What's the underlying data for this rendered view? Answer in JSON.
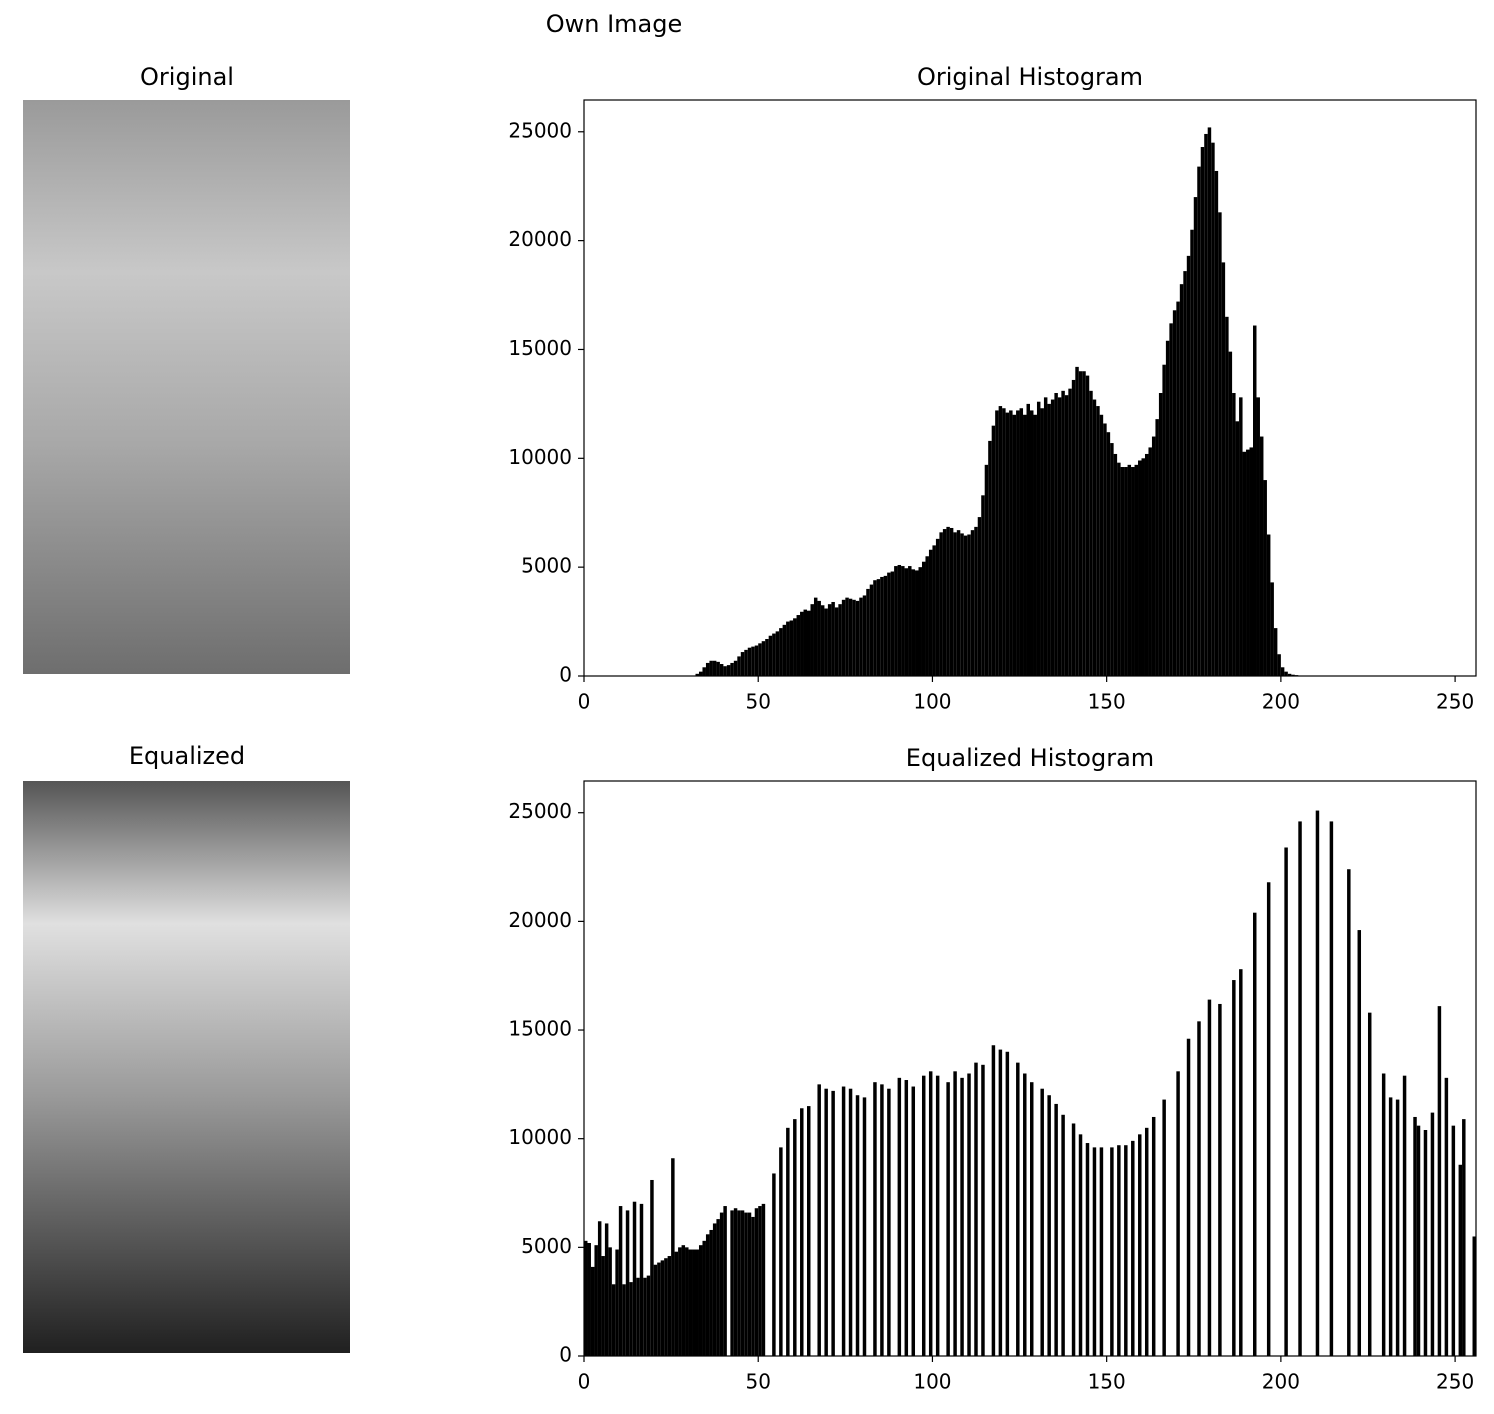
{
  "title": "Own Image",
  "images": [
    {
      "title": "Original"
    },
    {
      "title": "Equalized"
    }
  ],
  "chart_data": [
    {
      "type": "histogram",
      "title": "Original Histogram",
      "color": "#000000",
      "bins": [
        0,
        1,
        2,
        3,
        4,
        5,
        6,
        7,
        8,
        9,
        10,
        11,
        12,
        13,
        14,
        15,
        16,
        17,
        18,
        19,
        20,
        21,
        22,
        23,
        24,
        25,
        26,
        27,
        28,
        29,
        30,
        31,
        32,
        33,
        34,
        35,
        36,
        37,
        38,
        39,
        40,
        41,
        42,
        43,
        44,
        45,
        46,
        47,
        48,
        49,
        50,
        51,
        52,
        53,
        54,
        55,
        56,
        57,
        58,
        59,
        60,
        61,
        62,
        63,
        64,
        65,
        66,
        67,
        68,
        69,
        70,
        71,
        72,
        73,
        74,
        75,
        76,
        77,
        78,
        79,
        80,
        81,
        82,
        83,
        84,
        85,
        86,
        87,
        88,
        89,
        90,
        91,
        92,
        93,
        94,
        95,
        96,
        97,
        98,
        99,
        100,
        101,
        102,
        103,
        104,
        105,
        106,
        107,
        108,
        109,
        110,
        111,
        112,
        113,
        114,
        115,
        116,
        117,
        118,
        119,
        120,
        121,
        122,
        123,
        124,
        125,
        126,
        127,
        128,
        129,
        130,
        131,
        132,
        133,
        134,
        135,
        136,
        137,
        138,
        139,
        140,
        141,
        142,
        143,
        144,
        145,
        146,
        147,
        148,
        149,
        150,
        151,
        152,
        153,
        154,
        155,
        156,
        157,
        158,
        159,
        160,
        161,
        162,
        163,
        164,
        165,
        166,
        167,
        168,
        169,
        170,
        171,
        172,
        173,
        174,
        175,
        176,
        177,
        178,
        179,
        180,
        181,
        182,
        183,
        184,
        185,
        186,
        187,
        188,
        189,
        190,
        191,
        192,
        193,
        194,
        195,
        196,
        197,
        198,
        199,
        200,
        201,
        202,
        203,
        204,
        205,
        206,
        207,
        208,
        209,
        210,
        211,
        212,
        213,
        214,
        215,
        216,
        217,
        218,
        219,
        220,
        221,
        222,
        223,
        224,
        225,
        226,
        227,
        228,
        229,
        230,
        231,
        232,
        233,
        234,
        235,
        236,
        237,
        238,
        239,
        240,
        241,
        242,
        243,
        244,
        245,
        246,
        247,
        248,
        249,
        250,
        251,
        252,
        253,
        254,
        255,
        256
      ],
      "values": [
        0,
        0,
        0,
        0,
        0,
        0,
        0,
        0,
        0,
        0,
        0,
        0,
        0,
        0,
        0,
        0,
        0,
        0,
        0,
        0,
        0,
        0,
        0,
        0,
        0,
        0,
        0,
        0,
        0,
        0,
        0,
        0,
        100,
        200,
        400,
        600,
        700,
        700,
        650,
        550,
        450,
        500,
        600,
        700,
        900,
        1100,
        1200,
        1300,
        1350,
        1400,
        1500,
        1600,
        1700,
        1850,
        1950,
        2050,
        2200,
        2350,
        2500,
        2550,
        2650,
        2800,
        2950,
        3050,
        3000,
        3300,
        3600,
        3450,
        3250,
        3100,
        3300,
        3400,
        3150,
        3300,
        3500,
        3600,
        3550,
        3500,
        3450,
        3600,
        3700,
        4000,
        4200,
        4400,
        4450,
        4550,
        4600,
        4750,
        4800,
        5050,
        5100,
        5050,
        4950,
        5050,
        4900,
        4850,
        5000,
        5250,
        5500,
        5800,
        6000,
        6300,
        6600,
        6750,
        6850,
        6800,
        6600,
        6700,
        6550,
        6450,
        6500,
        6700,
        6850,
        7300,
        8300,
        9700,
        10800,
        11500,
        12200,
        12400,
        12300,
        12100,
        12200,
        12000,
        12200,
        12300,
        12000,
        12500,
        12200,
        12000,
        12600,
        12300,
        12800,
        12500,
        12700,
        13000,
        12800,
        13100,
        12900,
        13200,
        13600,
        14200,
        14000,
        14000,
        13800,
        13100,
        12700,
        12400,
        12000,
        11600,
        11200,
        10700,
        10200,
        9800,
        9600,
        9600,
        9700,
        9600,
        9700,
        9900,
        10000,
        10200,
        10500,
        11000,
        11800,
        13000,
        14300,
        15400,
        16200,
        16800,
        17200,
        18000,
        18600,
        19300,
        20500,
        22000,
        23400,
        24300,
        24900,
        25200,
        24500,
        23200,
        21300,
        19000,
        16500,
        14900,
        13000,
        11700,
        12800,
        10300,
        10400,
        10500,
        16100,
        12800,
        11000,
        9000,
        6500,
        4300,
        2200,
        1000,
        400,
        200,
        100,
        60,
        40,
        20,
        10,
        0,
        0,
        0,
        0,
        0,
        0,
        0,
        0,
        0,
        0,
        0,
        0,
        0,
        0,
        0,
        0,
        0,
        0,
        0,
        0,
        0,
        0,
        0,
        0,
        0,
        0,
        0,
        0,
        0,
        0,
        0,
        0,
        0,
        0,
        0,
        0,
        0,
        0,
        0,
        0,
        0,
        0,
        0,
        0,
        0,
        0,
        0,
        0,
        0
      ],
      "xlim": [
        0,
        256
      ],
      "ylim": [
        0,
        26460
      ],
      "xticks": [
        0,
        50,
        100,
        150,
        200,
        250
      ],
      "yticks": [
        0,
        5000,
        10000,
        15000,
        20000,
        25000
      ]
    },
    {
      "type": "histogram",
      "title": "Equalized Histogram",
      "color": "#000000",
      "bins": [
        0,
        1,
        2,
        3,
        4,
        5,
        6,
        7,
        8,
        9,
        10,
        11,
        12,
        13,
        14,
        15,
        16,
        17,
        18,
        19,
        20,
        21,
        22,
        23,
        24,
        25,
        26,
        27,
        28,
        29,
        30,
        31,
        32,
        33,
        34,
        35,
        36,
        37,
        38,
        39,
        40,
        41,
        42,
        43,
        44,
        45,
        46,
        47,
        48,
        49,
        50,
        51,
        52,
        53,
        54,
        55,
        56,
        57,
        58,
        59,
        60,
        61,
        62,
        63,
        64,
        65,
        66,
        67,
        68,
        69,
        70,
        71,
        72,
        73,
        74,
        75,
        76,
        77,
        78,
        79,
        80,
        81,
        82,
        83,
        84,
        85,
        86,
        87,
        88,
        89,
        90,
        91,
        92,
        93,
        94,
        95,
        96,
        97,
        98,
        99,
        100,
        101,
        102,
        103,
        104,
        105,
        106,
        107,
        108,
        109,
        110,
        111,
        112,
        113,
        114,
        115,
        116,
        117,
        118,
        119,
        120,
        121,
        122,
        123,
        124,
        125,
        126,
        127,
        128,
        129,
        130,
        131,
        132,
        133,
        134,
        135,
        136,
        137,
        138,
        139,
        140,
        141,
        142,
        143,
        144,
        145,
        146,
        147,
        148,
        149,
        150,
        151,
        152,
        153,
        154,
        155,
        156,
        157,
        158,
        159,
        160,
        161,
        162,
        163,
        164,
        165,
        166,
        167,
        168,
        169,
        170,
        171,
        172,
        173,
        174,
        175,
        176,
        177,
        178,
        179,
        180,
        181,
        182,
        183,
        184,
        185,
        186,
        187,
        188,
        189,
        190,
        191,
        192,
        193,
        194,
        195,
        196,
        197,
        198,
        199,
        200,
        201,
        202,
        203,
        204,
        205,
        206,
        207,
        208,
        209,
        210,
        211,
        212,
        213,
        214,
        215,
        216,
        217,
        218,
        219,
        220,
        221,
        222,
        223,
        224,
        225,
        226,
        227,
        228,
        229,
        230,
        231,
        232,
        233,
        234,
        235,
        236,
        237,
        238,
        239,
        240,
        241,
        242,
        243,
        244,
        245,
        246,
        247,
        248,
        249,
        250,
        251,
        252,
        253,
        254,
        255,
        256
      ],
      "values": [
        5300,
        5200,
        4100,
        5100,
        6200,
        4600,
        6100,
        5000,
        3300,
        4900,
        6900,
        3300,
        6700,
        3400,
        7100,
        3600,
        7000,
        3600,
        3700,
        8100,
        4200,
        4300,
        4400,
        4500,
        4600,
        9100,
        4800,
        5000,
        5100,
        5000,
        4900,
        4900,
        4900,
        5100,
        5300,
        5600,
        5800,
        6100,
        6300,
        6600,
        6900,
        0,
        6700,
        6800,
        6700,
        6700,
        6600,
        6600,
        6400,
        6800,
        6900,
        7000,
        0,
        0,
        8400,
        0,
        9600,
        0,
        10500,
        0,
        10900,
        0,
        11400,
        0,
        11500,
        0,
        0,
        12500,
        0,
        12300,
        0,
        12200,
        0,
        0,
        12400,
        0,
        12300,
        0,
        12000,
        0,
        11900,
        0,
        0,
        12600,
        0,
        12500,
        0,
        12300,
        0,
        0,
        12800,
        0,
        12700,
        0,
        12400,
        0,
        0,
        12900,
        0,
        13100,
        0,
        12900,
        0,
        0,
        12600,
        0,
        13100,
        0,
        12800,
        0,
        13000,
        0,
        13500,
        0,
        13400,
        0,
        0,
        14300,
        0,
        14100,
        0,
        14000,
        0,
        0,
        13500,
        0,
        13000,
        0,
        12600,
        0,
        0,
        12300,
        0,
        12000,
        0,
        11600,
        0,
        11100,
        0,
        0,
        10700,
        0,
        10200,
        0,
        9800,
        0,
        9600,
        0,
        9600,
        0,
        0,
        9600,
        0,
        9700,
        0,
        9700,
        0,
        9900,
        0,
        10200,
        0,
        10500,
        0,
        11000,
        0,
        0,
        11800,
        0,
        0,
        0,
        13100,
        0,
        0,
        14600,
        0,
        0,
        15400,
        0,
        0,
        16400,
        0,
        0,
        16200,
        0,
        0,
        0,
        17300,
        0,
        17800,
        0,
        0,
        0,
        20400,
        0,
        0,
        0,
        21800,
        0,
        0,
        0,
        0,
        23400,
        0,
        0,
        0,
        24600,
        0,
        0,
        0,
        0,
        25100,
        0,
        0,
        0,
        24600,
        0,
        0,
        0,
        0,
        22400,
        0,
        0,
        19600,
        0,
        0,
        15800,
        0,
        0,
        0,
        13000,
        0,
        11900,
        0,
        11800,
        0,
        12900,
        0,
        0,
        11000,
        10600,
        0,
        10400,
        0,
        11200,
        0,
        16100,
        0,
        12800,
        0,
        10600,
        0,
        8800,
        10900,
        0,
        0,
        5500
      ],
      "xlim": [
        0,
        256
      ],
      "ylim": [
        0,
        26460
      ],
      "xticks": [
        0,
        50,
        100,
        150,
        200,
        250
      ],
      "yticks": [
        0,
        5000,
        10000,
        15000,
        20000,
        25000
      ]
    }
  ]
}
